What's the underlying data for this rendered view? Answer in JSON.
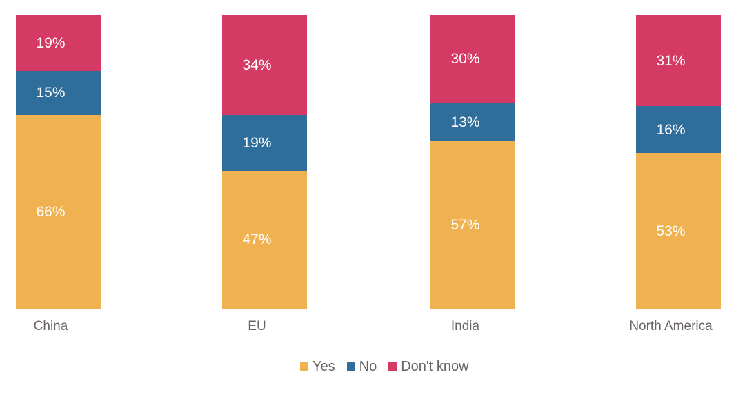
{
  "chart_data": {
    "type": "bar",
    "variant": "stacked-column",
    "stacked": true,
    "unit": "%",
    "title": "",
    "xlabel": "",
    "ylabel": "",
    "ylim": [
      0,
      100
    ],
    "grid": false,
    "axes_visible": false,
    "legend_position": "bottom",
    "stack_order_bottom_to_top": [
      "Yes",
      "No",
      "Don't know"
    ],
    "categories": [
      "China",
      "EU",
      "India",
      "North America"
    ],
    "series": [
      {
        "name": "Yes",
        "color": "#F0B150",
        "values": [
          66,
          47,
          57,
          53
        ],
        "labels": [
          "66%",
          "47%",
          "57%",
          "53%"
        ]
      },
      {
        "name": "No",
        "color": "#2F6D9B",
        "values": [
          15,
          19,
          13,
          16
        ],
        "labels": [
          "15%",
          "19%",
          "13%",
          "16%"
        ]
      },
      {
        "name": "Don't know",
        "color": "#D53A64",
        "values": [
          19,
          34,
          30,
          31
        ],
        "labels": [
          "19%",
          "34%",
          "30%",
          "31%"
        ]
      }
    ]
  },
  "colors": {
    "background": "#ffffff",
    "data_label_text": "#ffffff",
    "axis_label_text": "#6a6462",
    "legend_text": "#6a6462"
  }
}
